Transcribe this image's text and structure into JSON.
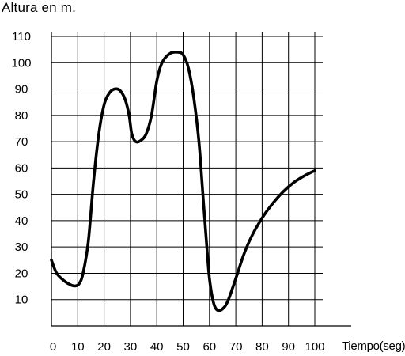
{
  "chart_data": {
    "type": "line",
    "title": "",
    "ylabel": "Altura en m.",
    "xlabel": "Tiempo(seg)",
    "x_ticks": [
      0,
      10,
      20,
      30,
      40,
      50,
      60,
      70,
      80,
      90,
      100
    ],
    "x_tick_labels": [
      "0",
      "10",
      "20",
      "30",
      "40",
      "50",
      "60",
      "70",
      "80",
      "90",
      "100"
    ],
    "y_ticks": [
      10,
      20,
      30,
      40,
      50,
      60,
      70,
      80,
      90,
      100,
      110
    ],
    "y_tick_labels": [
      "10",
      "20",
      "30",
      "40",
      "50",
      "60",
      "70",
      "80",
      "90",
      "100",
      "110"
    ],
    "xlim": [
      0,
      100
    ],
    "ylim": [
      0,
      110
    ],
    "grid": true,
    "line_color": "#000000",
    "series": [
      {
        "values": [
          [
            0,
            25
          ],
          [
            2,
            20
          ],
          [
            5,
            17
          ],
          [
            7.5,
            15.5
          ],
          [
            9,
            15.2
          ],
          [
            10.5,
            16
          ],
          [
            12,
            20
          ],
          [
            14,
            32
          ],
          [
            16,
            55
          ],
          [
            18,
            73
          ],
          [
            20,
            84
          ],
          [
            22,
            88.5
          ],
          [
            24,
            90
          ],
          [
            26,
            89.5
          ],
          [
            28,
            86
          ],
          [
            29.5,
            80
          ],
          [
            30.5,
            73
          ],
          [
            32,
            70
          ],
          [
            34,
            70.5
          ],
          [
            36,
            73
          ],
          [
            38,
            80
          ],
          [
            40,
            93
          ],
          [
            42,
            100
          ],
          [
            45,
            103.5
          ],
          [
            48,
            104
          ],
          [
            50,
            103
          ],
          [
            52,
            98
          ],
          [
            54,
            87
          ],
          [
            56,
            70
          ],
          [
            57.5,
            50
          ],
          [
            59,
            30
          ],
          [
            60,
            18
          ],
          [
            61.5,
            9
          ],
          [
            63,
            6
          ],
          [
            65,
            6.5
          ],
          [
            67,
            9.5
          ],
          [
            70,
            18
          ],
          [
            73,
            27
          ],
          [
            76,
            34
          ],
          [
            80,
            41
          ],
          [
            84,
            46.5
          ],
          [
            88,
            51
          ],
          [
            92,
            54.5
          ],
          [
            96,
            57
          ],
          [
            100,
            59
          ]
        ]
      }
    ]
  }
}
